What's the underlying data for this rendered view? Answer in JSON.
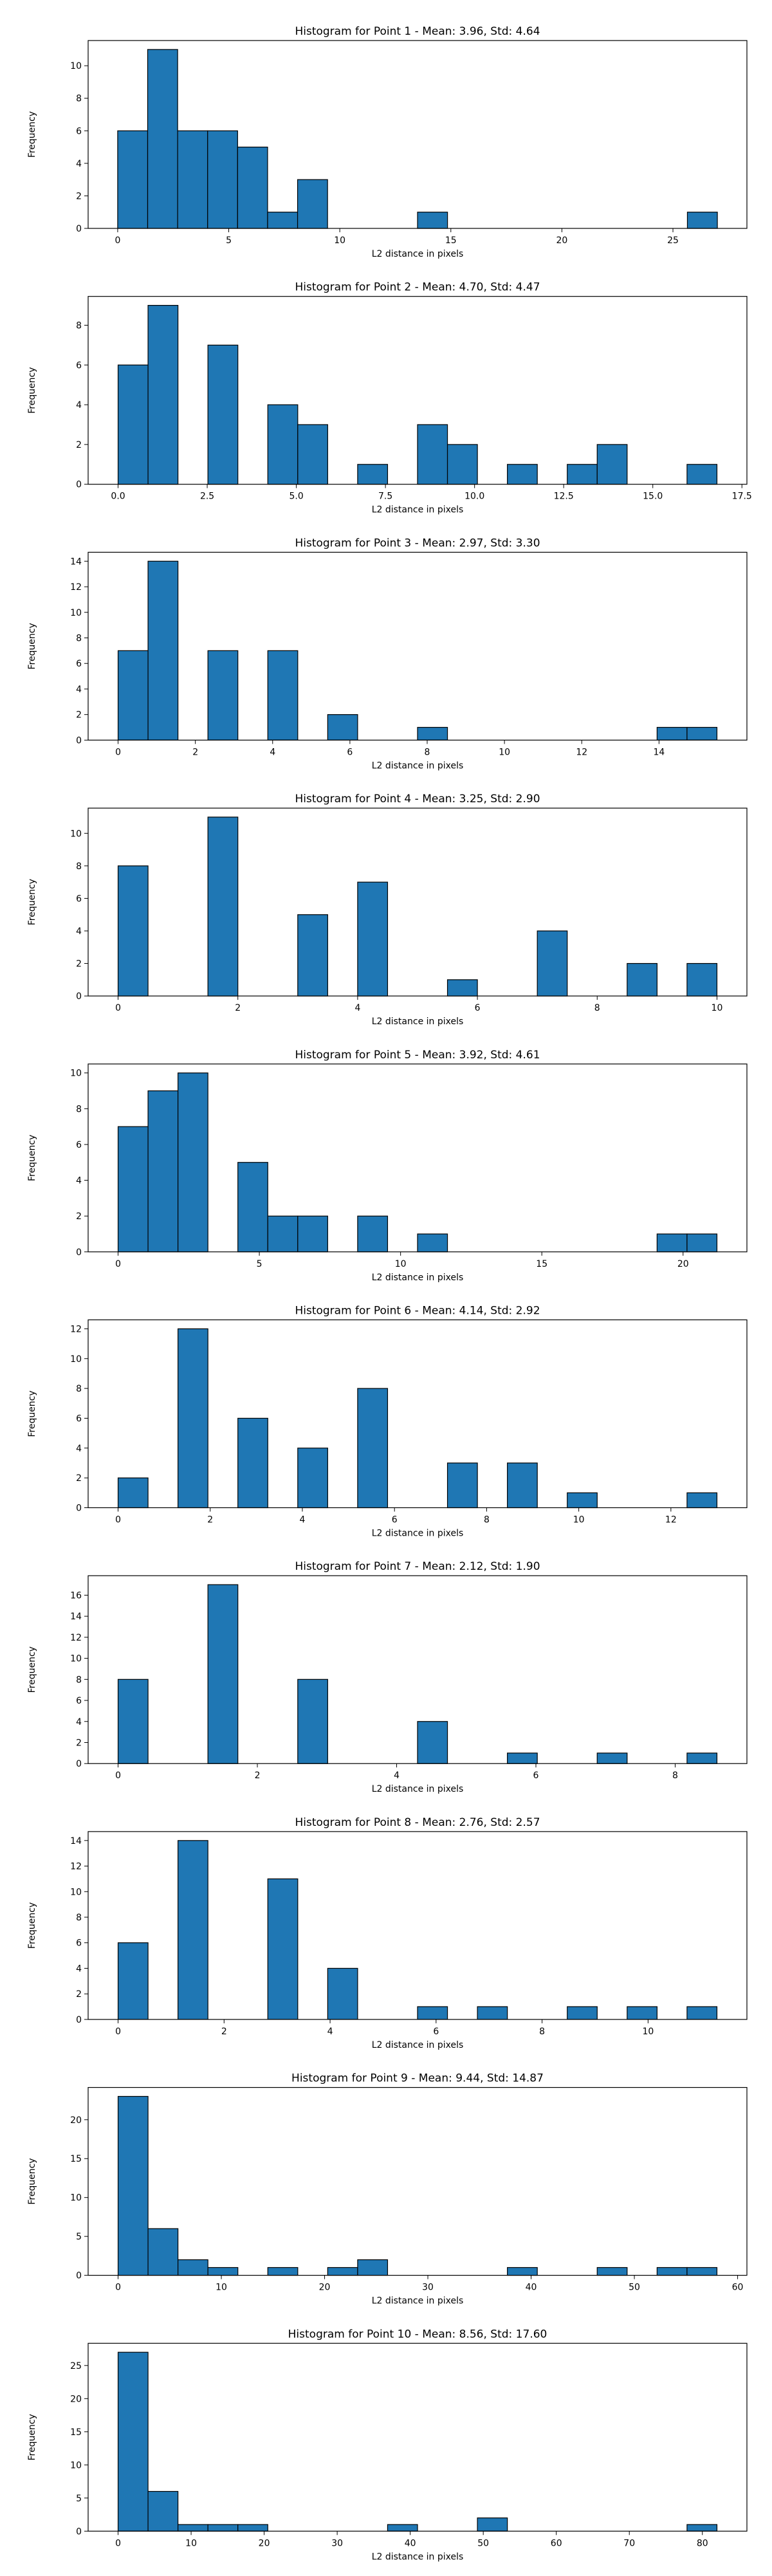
{
  "chart_data": [
    {
      "type": "bar",
      "title": "Histogram for Point 1 - Mean: 3.96, Std: 4.64",
      "xlabel": "L2 distance in pixels",
      "ylabel": "Frequency",
      "xlim": [
        -1.33,
        28.33
      ],
      "ylim": [
        0,
        11.55
      ],
      "xticks": [
        0,
        5,
        10,
        15,
        20,
        25
      ],
      "yticks": [
        0,
        2,
        4,
        6,
        8,
        10
      ],
      "bin_edges": [
        0,
        1.35,
        2.7,
        4.05,
        5.4,
        6.75,
        8.1,
        9.45,
        10.8,
        12.15,
        13.5,
        14.85,
        16.2,
        17.55,
        18.9,
        20.25,
        21.6,
        22.95,
        24.3,
        25.65,
        27.0
      ],
      "counts": [
        6,
        11,
        6,
        6,
        5,
        1,
        3,
        0,
        0,
        0,
        1,
        0,
        0,
        0,
        0,
        0,
        0,
        0,
        0,
        1
      ],
      "color": "#1f77b4",
      "grid": false
    },
    {
      "type": "bar",
      "title": "Histogram for Point 2 - Mean: 4.70, Std: 4.47",
      "xlabel": "L2 distance in pixels",
      "ylabel": "Frequency",
      "xlim": [
        -0.84,
        17.64
      ],
      "ylim": [
        0,
        9.45
      ],
      "xticks": [
        0.0,
        2.5,
        5.0,
        7.5,
        10.0,
        12.5,
        15.0,
        17.5
      ],
      "xtick_labels": [
        "0.0",
        "2.5",
        "5.0",
        "7.5",
        "10.0",
        "12.5",
        "15.0",
        "17.5"
      ],
      "yticks": [
        0,
        2,
        4,
        6,
        8
      ],
      "bin_edges": [
        0,
        0.84,
        1.68,
        2.52,
        3.36,
        4.2,
        5.04,
        5.88,
        6.72,
        7.56,
        8.4,
        9.24,
        10.08,
        10.92,
        11.76,
        12.6,
        13.44,
        14.28,
        15.12,
        15.96,
        16.8
      ],
      "counts": [
        6,
        9,
        0,
        7,
        0,
        4,
        3,
        0,
        1,
        0,
        3,
        2,
        0,
        1,
        0,
        1,
        2,
        0,
        0,
        1
      ],
      "color": "#1f77b4",
      "grid": false
    },
    {
      "type": "bar",
      "title": "Histogram for Point 3 - Mean: 2.97, Std: 3.30",
      "xlabel": "L2 distance in pixels",
      "ylabel": "Frequency",
      "xlim": [
        -0.775,
        16.275
      ],
      "ylim": [
        0,
        14.7
      ],
      "xticks": [
        0,
        2,
        4,
        6,
        8,
        10,
        12,
        14
      ],
      "yticks": [
        0,
        2,
        4,
        6,
        8,
        10,
        12,
        14
      ],
      "bin_edges": [
        0,
        0.775,
        1.55,
        2.325,
        3.1,
        3.875,
        4.65,
        5.425,
        6.2,
        6.975,
        7.75,
        8.525,
        9.3,
        10.075,
        10.85,
        11.625,
        12.4,
        13.175,
        13.95,
        14.725,
        15.5
      ],
      "counts": [
        7,
        14,
        0,
        7,
        0,
        7,
        0,
        2,
        0,
        0,
        1,
        0,
        0,
        0,
        0,
        0,
        0,
        0,
        1,
        1
      ],
      "color": "#1f77b4",
      "grid": false
    },
    {
      "type": "bar",
      "title": "Histogram for Point 4 - Mean: 3.25, Std: 2.90",
      "xlabel": "L2 distance in pixels",
      "ylabel": "Frequency",
      "xlim": [
        -0.5,
        10.5
      ],
      "ylim": [
        0,
        11.55
      ],
      "xticks": [
        0,
        2,
        4,
        6,
        8,
        10
      ],
      "yticks": [
        0,
        2,
        4,
        6,
        8,
        10
      ],
      "bin_edges": [
        0,
        0.5,
        1.0,
        1.5,
        2.0,
        2.5,
        3.0,
        3.5,
        4.0,
        4.5,
        5.0,
        5.5,
        6.0,
        6.5,
        7.0,
        7.5,
        8.0,
        8.5,
        9.0,
        9.5,
        10.0
      ],
      "counts": [
        8,
        0,
        0,
        11,
        0,
        0,
        5,
        0,
        7,
        0,
        0,
        1,
        0,
        0,
        4,
        0,
        0,
        2,
        0,
        2
      ],
      "color": "#1f77b4",
      "grid": false
    },
    {
      "type": "bar",
      "title": "Histogram for Point 5 - Mean: 3.92, Std: 4.61",
      "xlabel": "L2 distance in pixels",
      "ylabel": "Frequency",
      "xlim": [
        -1.06,
        22.26
      ],
      "ylim": [
        0,
        10.5
      ],
      "xticks": [
        0,
        5,
        10,
        15,
        20
      ],
      "yticks": [
        0,
        2,
        4,
        6,
        8,
        10
      ],
      "bin_edges": [
        0,
        1.06,
        2.12,
        3.18,
        4.24,
        5.3,
        6.36,
        7.42,
        8.48,
        9.54,
        10.6,
        11.66,
        12.72,
        13.78,
        14.84,
        15.9,
        16.96,
        18.02,
        19.08,
        20.14,
        21.2
      ],
      "counts": [
        7,
        9,
        10,
        0,
        5,
        2,
        2,
        0,
        2,
        0,
        1,
        0,
        0,
        0,
        0,
        0,
        0,
        0,
        1,
        1
      ],
      "color": "#1f77b4",
      "grid": false
    },
    {
      "type": "bar",
      "title": "Histogram for Point 6 - Mean: 4.14, Std: 2.92",
      "xlabel": "L2 distance in pixels",
      "ylabel": "Frequency",
      "xlim": [
        -0.65,
        13.65
      ],
      "ylim": [
        0,
        12.6
      ],
      "xticks": [
        0,
        2,
        4,
        6,
        8,
        10,
        12
      ],
      "yticks": [
        0,
        2,
        4,
        6,
        8,
        10,
        12
      ],
      "bin_edges": [
        0,
        0.65,
        1.3,
        1.95,
        2.6,
        3.25,
        3.9,
        4.55,
        5.2,
        5.85,
        6.5,
        7.15,
        7.8,
        8.45,
        9.1,
        9.75,
        10.4,
        11.05,
        11.7,
        12.35,
        13.0
      ],
      "counts": [
        2,
        0,
        12,
        0,
        6,
        0,
        4,
        0,
        8,
        0,
        0,
        3,
        0,
        3,
        0,
        1,
        0,
        0,
        0,
        1
      ],
      "color": "#1f77b4",
      "grid": false
    },
    {
      "type": "bar",
      "title": "Histogram for Point 7 - Mean: 2.12, Std: 1.90",
      "xlabel": "L2 distance in pixels",
      "ylabel": "Frequency",
      "xlim": [
        -0.43,
        9.03
      ],
      "ylim": [
        0,
        17.85
      ],
      "xticks": [
        0,
        2,
        4,
        6,
        8
      ],
      "yticks": [
        0,
        2,
        4,
        6,
        8,
        10,
        12,
        14,
        16
      ],
      "bin_edges": [
        0,
        0.43,
        0.86,
        1.29,
        1.72,
        2.15,
        2.58,
        3.01,
        3.44,
        3.87,
        4.3,
        4.73,
        5.16,
        5.59,
        6.02,
        6.45,
        6.88,
        7.31,
        7.74,
        8.17,
        8.6
      ],
      "counts": [
        8,
        0,
        0,
        17,
        0,
        0,
        8,
        0,
        0,
        0,
        4,
        0,
        0,
        1,
        0,
        0,
        1,
        0,
        0,
        1
      ],
      "color": "#1f77b4",
      "grid": false
    },
    {
      "type": "bar",
      "title": "Histogram for Point 8 - Mean: 2.76, Std: 2.57",
      "xlabel": "L2 distance in pixels",
      "ylabel": "Frequency",
      "xlim": [
        -0.565,
        11.865
      ],
      "ylim": [
        0,
        14.7
      ],
      "xticks": [
        0,
        2,
        4,
        6,
        8,
        10
      ],
      "yticks": [
        0,
        2,
        4,
        6,
        8,
        10,
        12,
        14
      ],
      "bin_edges": [
        0,
        0.565,
        1.13,
        1.695,
        2.26,
        2.825,
        3.39,
        3.955,
        4.52,
        5.085,
        5.65,
        6.215,
        6.78,
        7.345,
        7.91,
        8.475,
        9.04,
        9.605,
        10.17,
        10.735,
        11.3
      ],
      "counts": [
        6,
        0,
        14,
        0,
        0,
        11,
        0,
        4,
        0,
        0,
        1,
        0,
        1,
        0,
        0,
        1,
        0,
        1,
        0,
        1
      ],
      "color": "#1f77b4",
      "grid": false
    },
    {
      "type": "bar",
      "title": "Histogram for Point 9 - Mean: 9.44, Std: 14.87",
      "xlabel": "L2 distance in pixels",
      "ylabel": "Frequency",
      "xlim": [
        -2.9,
        60.9
      ],
      "ylim": [
        0,
        24.15
      ],
      "xticks": [
        0,
        10,
        20,
        30,
        40,
        50,
        60
      ],
      "yticks": [
        0,
        5,
        10,
        15,
        20
      ],
      "bin_edges": [
        0,
        2.9,
        5.8,
        8.7,
        11.6,
        14.5,
        17.4,
        20.3,
        23.2,
        26.1,
        29.0,
        31.9,
        34.8,
        37.7,
        40.6,
        43.5,
        46.4,
        49.3,
        52.2,
        55.1,
        58.0
      ],
      "counts": [
        23,
        6,
        2,
        1,
        0,
        1,
        0,
        1,
        2,
        0,
        0,
        0,
        0,
        1,
        0,
        0,
        1,
        0,
        1,
        1
      ],
      "color": "#1f77b4",
      "grid": false
    },
    {
      "type": "bar",
      "title": "Histogram for Point 10 - Mean: 8.56, Std: 17.60",
      "xlabel": "L2 distance in pixels",
      "ylabel": "Frequency",
      "xlim": [
        -4.1,
        86.1
      ],
      "ylim": [
        0,
        28.35
      ],
      "xticks": [
        0,
        10,
        20,
        30,
        40,
        50,
        60,
        70,
        80
      ],
      "yticks": [
        0,
        5,
        10,
        15,
        20,
        25
      ],
      "bin_edges": [
        0,
        4.1,
        8.2,
        12.3,
        16.4,
        20.5,
        24.6,
        28.7,
        32.8,
        36.9,
        41.0,
        45.1,
        49.2,
        53.3,
        57.4,
        61.5,
        65.6,
        69.7,
        73.8,
        77.9,
        82.0
      ],
      "counts": [
        27,
        6,
        1,
        1,
        1,
        0,
        0,
        0,
        0,
        1,
        0,
        0,
        2,
        0,
        0,
        0,
        0,
        0,
        0,
        1
      ],
      "color": "#1f77b4",
      "grid": false
    }
  ]
}
